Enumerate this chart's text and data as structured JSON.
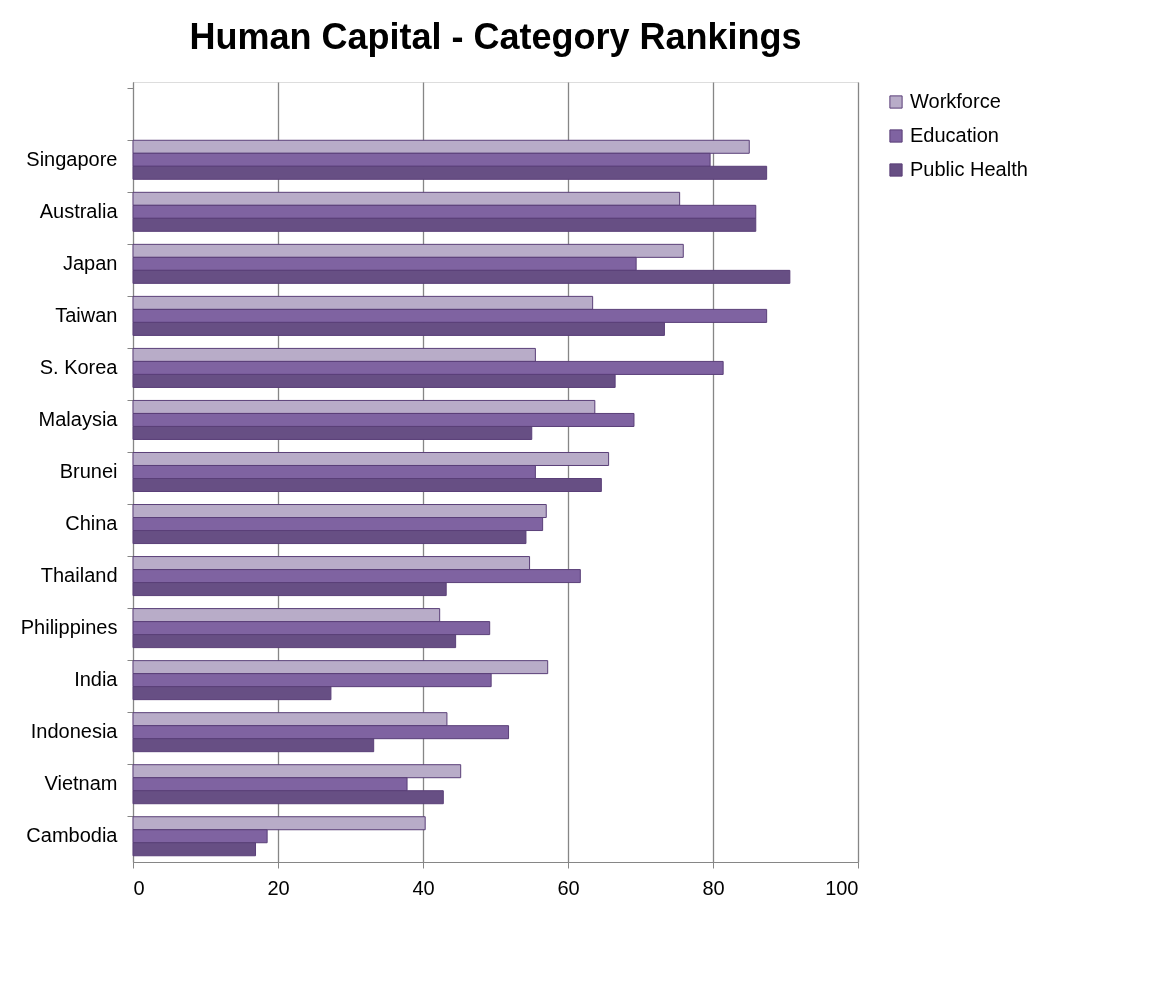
{
  "chart_data": {
    "type": "bar",
    "orientation": "horizontal",
    "title": "Human Capital - Category Rankings",
    "categories": [
      null,
      "Singapore",
      "Australia",
      "Japan",
      "Taiwan",
      "S. Korea",
      "Malaysia",
      "Brunei",
      "China",
      "Thailand",
      "Philippines",
      "India",
      "Indonesia",
      "Vietnam",
      "Cambodia"
    ],
    "series": [
      {
        "name": "Workforce",
        "color": "#b8acc8",
        "values": [
          null,
          85.0,
          75.4,
          75.9,
          63.4,
          55.5,
          63.7,
          65.6,
          57.0,
          54.7,
          42.3,
          57.2,
          43.3,
          45.2,
          40.3
        ]
      },
      {
        "name": "Education",
        "color": "#7f63a1",
        "values": [
          null,
          79.6,
          85.9,
          69.4,
          87.4,
          81.4,
          69.1,
          55.5,
          56.5,
          61.7,
          49.2,
          49.4,
          51.8,
          37.8,
          18.5
        ]
      },
      {
        "name": "Public Health",
        "color": "#674f84",
        "values": [
          null,
          87.4,
          85.9,
          90.6,
          73.3,
          66.5,
          55.0,
          64.6,
          54.2,
          43.2,
          44.5,
          27.3,
          33.2,
          42.8,
          16.9
        ]
      }
    ],
    "xlim": [
      0,
      100
    ],
    "xticks": [
      0,
      20,
      40,
      60,
      80,
      100
    ],
    "grid": "x",
    "legend": "right"
  }
}
